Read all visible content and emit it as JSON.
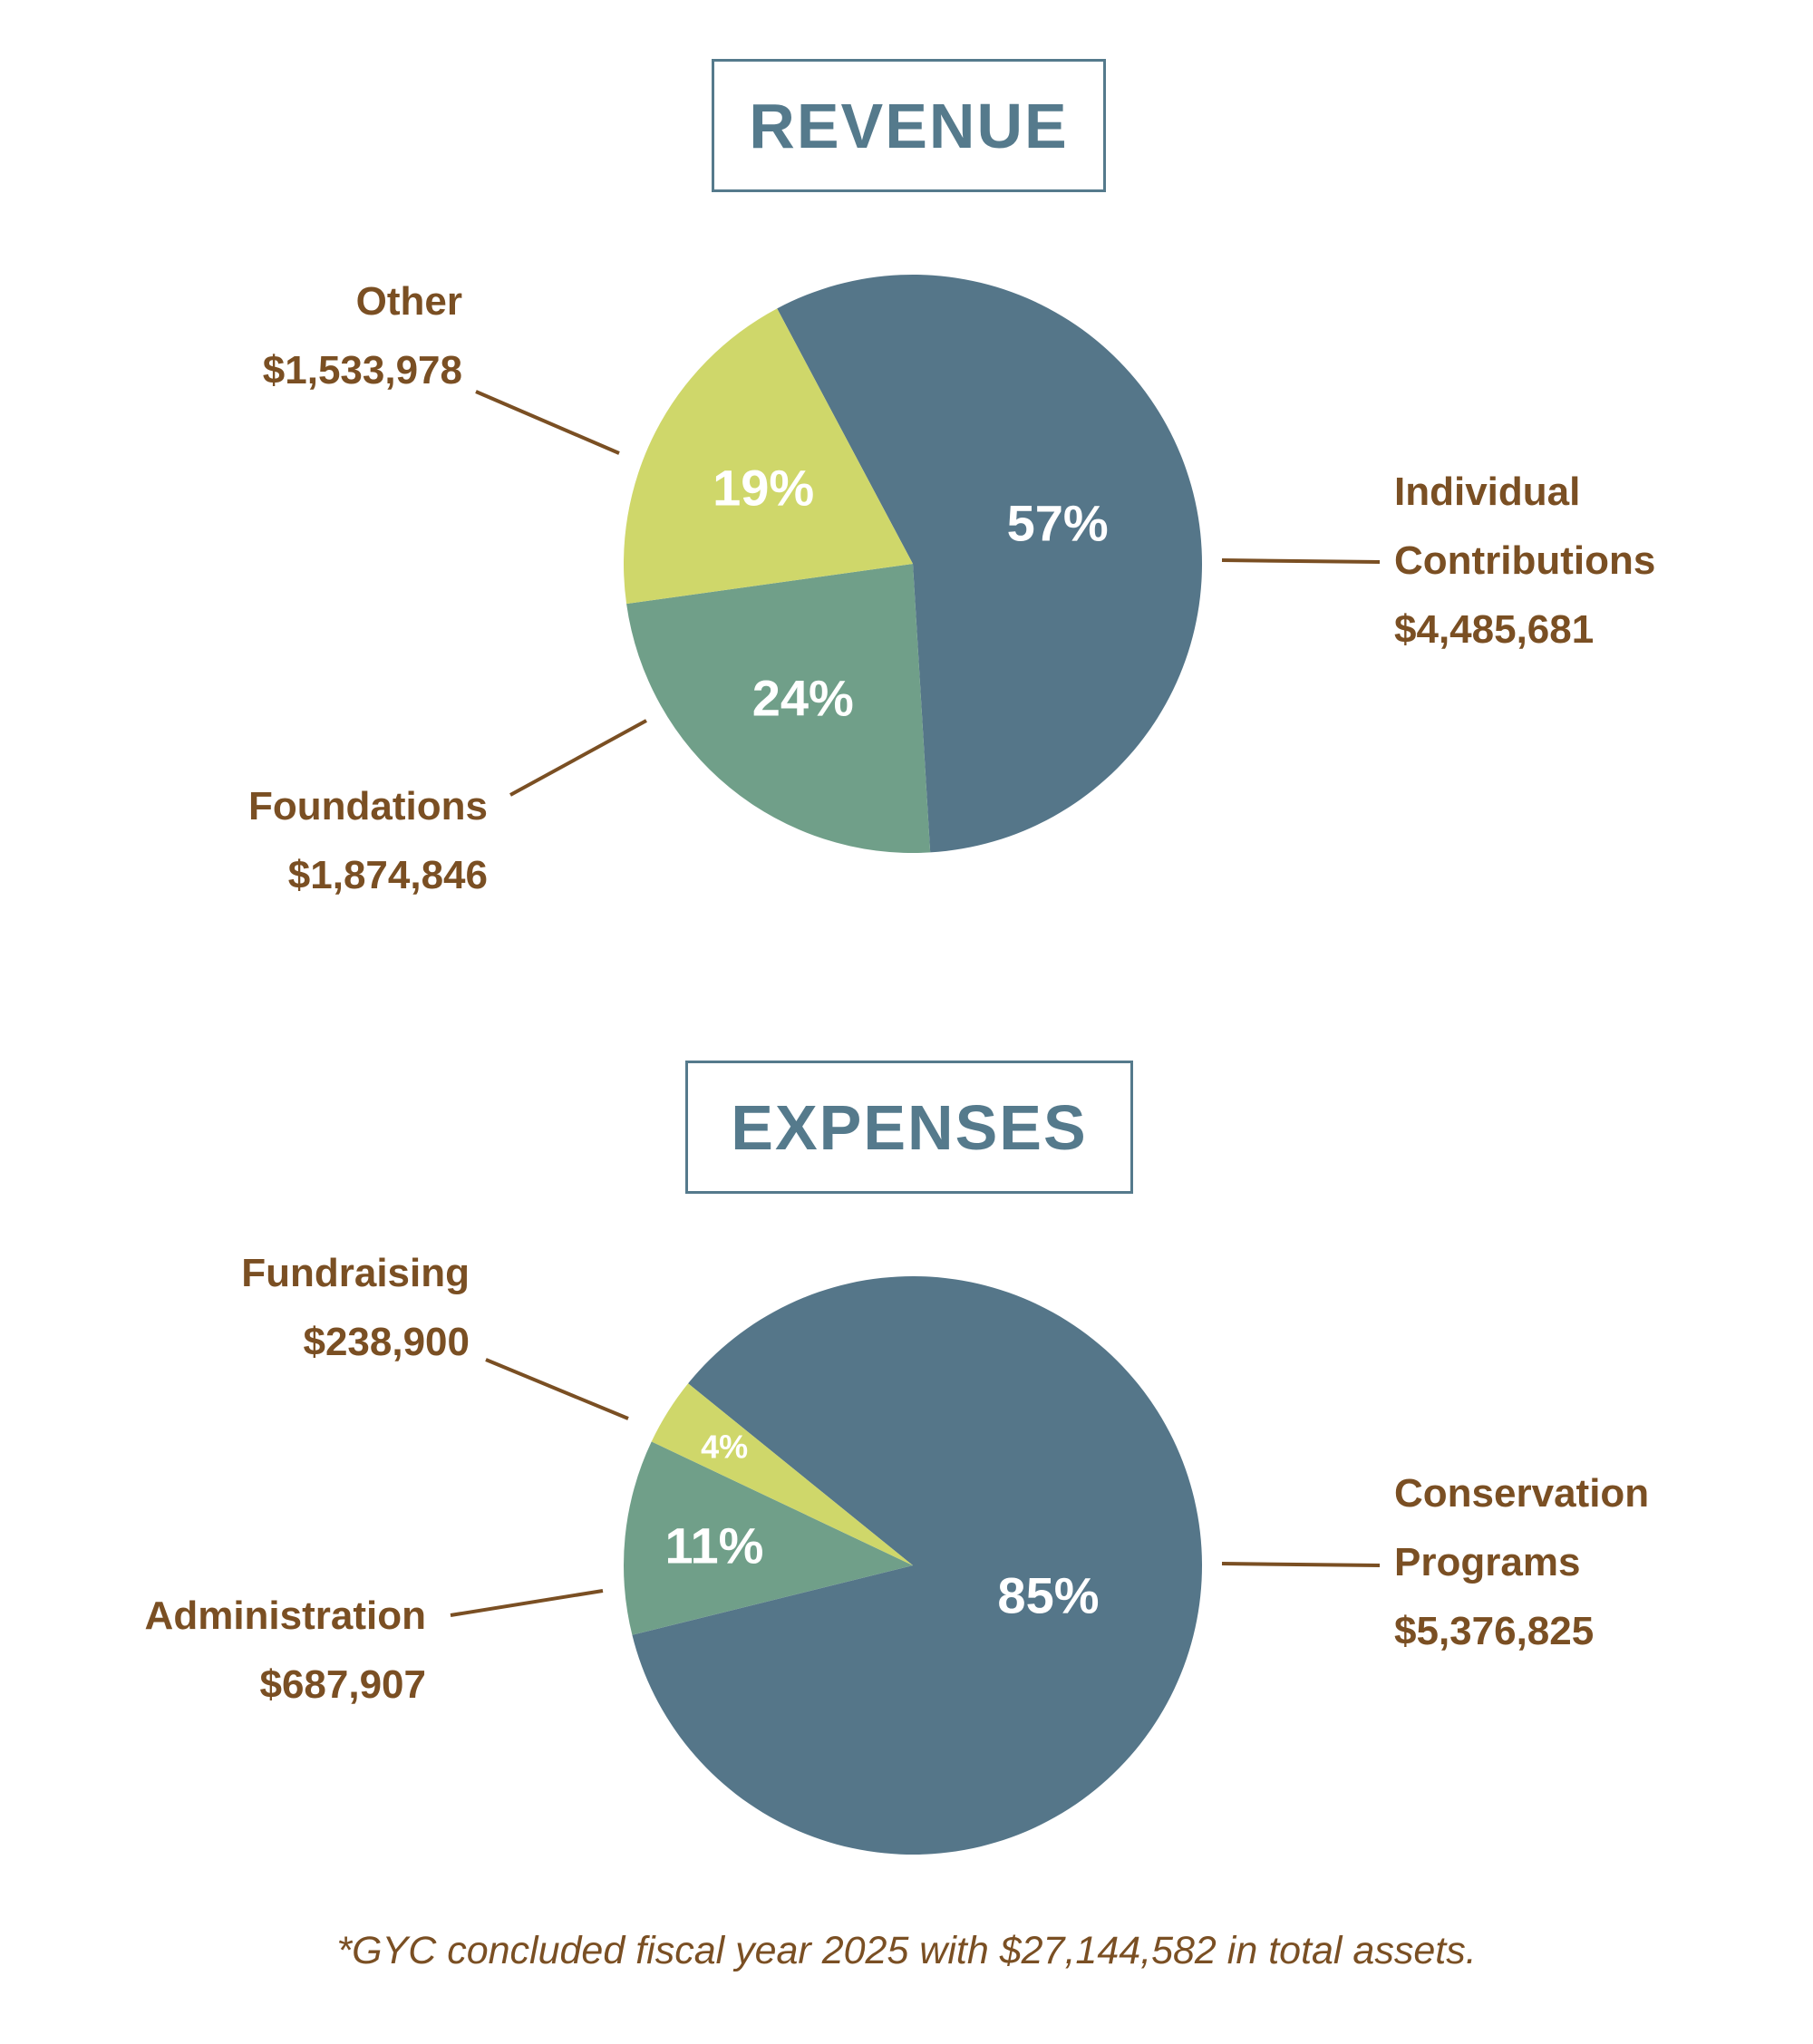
{
  "chart_data": [
    {
      "type": "pie",
      "title": "REVENUE",
      "slices": [
        {
          "label_lines": [
            "Individual",
            "Contributions"
          ],
          "amount": "$4,485,681",
          "percent_label": "57%",
          "value": 4485681,
          "color": "#557689"
        },
        {
          "label_lines": [
            "Foundations"
          ],
          "amount": "$1,874,846",
          "percent_label": "24%",
          "value": 1874846,
          "color": "#709f89"
        },
        {
          "label_lines": [
            "Other"
          ],
          "amount": "$1,533,978",
          "percent_label": "19%",
          "value": 1533978,
          "color": "#cfd76a"
        }
      ]
    },
    {
      "type": "pie",
      "title": "EXPENSES",
      "slices": [
        {
          "label_lines": [
            "Conservation",
            "Programs"
          ],
          "amount": "$5,376,825",
          "percent_label": "85%",
          "value": 5376825,
          "color": "#557689"
        },
        {
          "label_lines": [
            "Administration"
          ],
          "amount": "$687,907",
          "percent_label": "11%",
          "value": 687907,
          "color": "#709f89"
        },
        {
          "label_lines": [
            "Fundraising"
          ],
          "amount": "$238,900",
          "percent_label": "4%",
          "value": 238900,
          "color": "#cfd76a"
        }
      ]
    }
  ],
  "footnote": "*GYC concluded fiscal year 2025 with $27,144,582 in total assets.",
  "colors": {
    "title": "#557a8c",
    "label_text": "#7a4f23",
    "leader_line": "#7a4f23",
    "slice_text": "#ffffff"
  }
}
